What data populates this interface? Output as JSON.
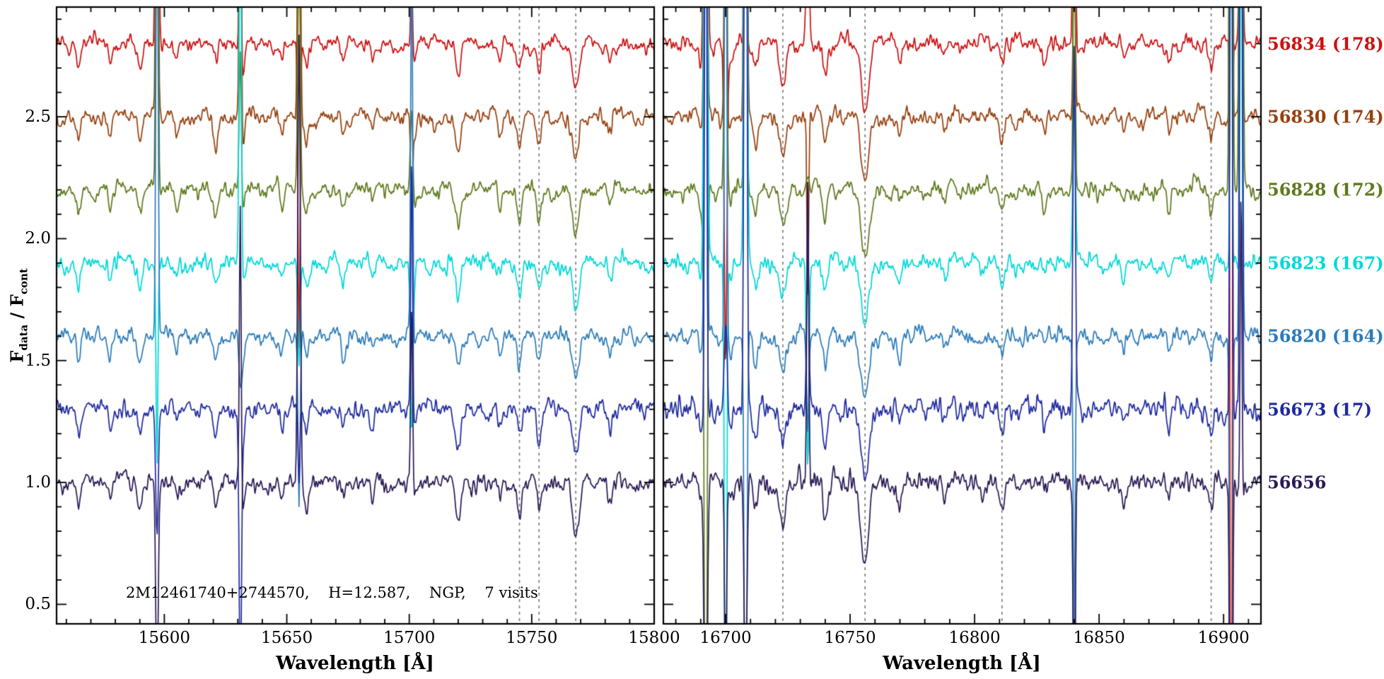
{
  "figure": {
    "annotation": "2M12461740+2744570,    H=12.587,    NGP,    7 visits",
    "xlabel": "Wavelength [Å]",
    "ylabel": {
      "f1": "F",
      "sub1": "data",
      "sep": " / ",
      "f2": "F",
      "sub2": "cont"
    },
    "background": "#ffffff",
    "axis_color": "#000000",
    "dashed_line_color": "#777777"
  },
  "chart_data": {
    "type": "line",
    "title": "",
    "xlabel": "Wavelength [Å]",
    "ylabel": "F_data / F_cont",
    "ylim": [
      0.42,
      2.95
    ],
    "yticks": [
      0.5,
      1.0,
      1.5,
      2.0,
      2.5
    ],
    "grid": false,
    "legend_position": "right",
    "annotation": "2M12461740+2744570,    H=12.587,    NGP,    7 visits",
    "noise_sigma": 0.022,
    "panels": [
      {
        "name": "left",
        "xlim": [
          15556,
          15800
        ],
        "xticks": [
          15600,
          15650,
          15700,
          15750,
          15800
        ],
        "dashed_lines": [
          15745,
          15753,
          15768
        ],
        "absorption_lines": [
          [
            15565,
            0.1,
            1.2
          ],
          [
            15578,
            0.08,
            1.0
          ],
          [
            15590,
            0.1,
            1.2
          ],
          [
            15605,
            0.07,
            1.0
          ],
          [
            15621,
            0.1,
            1.3
          ],
          [
            15632,
            0.12,
            1.0
          ],
          [
            15648,
            0.07,
            1.0
          ],
          [
            15658,
            0.09,
            1.2
          ],
          [
            15673,
            0.08,
            1.1
          ],
          [
            15685,
            0.06,
            1.0
          ],
          [
            15702,
            0.08,
            1.0
          ],
          [
            15720,
            0.14,
            1.6
          ],
          [
            15737,
            0.08,
            1.0
          ],
          [
            15745,
            0.12,
            1.2
          ],
          [
            15753,
            0.13,
            1.2
          ],
          [
            15768,
            0.21,
            1.8
          ],
          [
            15782,
            0.07,
            1.0
          ]
        ],
        "sky_spikes": [
          [
            15597,
            2.4
          ],
          [
            15631,
            2.0
          ],
          [
            15655,
            2.2
          ],
          [
            15701,
            1.5
          ]
        ]
      },
      {
        "name": "right",
        "xlim": [
          16675,
          16915
        ],
        "xticks": [
          16700,
          16750,
          16800,
          16850,
          16900
        ],
        "dashed_lines": [
          16723,
          16756,
          16811,
          16895
        ],
        "absorption_lines": [
          [
            16690,
            0.08,
            1.0
          ],
          [
            16702,
            0.08,
            1.0
          ],
          [
            16712,
            0.1,
            1.2
          ],
          [
            16723,
            0.16,
            1.8
          ],
          [
            16740,
            0.12,
            1.3
          ],
          [
            16756,
            0.28,
            2.2
          ],
          [
            16770,
            0.08,
            1.0
          ],
          [
            16788,
            0.06,
            1.0
          ],
          [
            16811,
            0.1,
            1.2
          ],
          [
            16828,
            0.07,
            1.0
          ],
          [
            16840,
            0.08,
            1.0
          ],
          [
            16860,
            0.06,
            1.0
          ],
          [
            16878,
            0.07,
            1.0
          ],
          [
            16895,
            0.1,
            1.2
          ]
        ],
        "sky_spikes": [
          [
            16692,
            9
          ],
          [
            16700,
            5
          ],
          [
            16708,
            8
          ],
          [
            16733,
            1.6
          ],
          [
            16840,
            2.8
          ],
          [
            16903,
            9
          ],
          [
            16907,
            7
          ]
        ]
      }
    ],
    "series": [
      {
        "label": "56834 (178)",
        "color": "#cc1111",
        "offset": 2.8,
        "seed": 11,
        "noise_scale": [
          1.0,
          1.1
        ]
      },
      {
        "label": "56830 (174)",
        "color": "#97400e",
        "offset": 2.5,
        "seed": 22,
        "noise_scale": [
          1.0,
          1.05
        ]
      },
      {
        "label": "56828 (172)",
        "color": "#5e7a1d",
        "offset": 2.2,
        "seed": 33,
        "noise_scale": [
          1.0,
          1.1
        ]
      },
      {
        "label": "56823 (167)",
        "color": "#00d8d8",
        "offset": 1.9,
        "seed": 44,
        "noise_scale": [
          1.05,
          1.15
        ]
      },
      {
        "label": "56820 (164)",
        "color": "#2b7bba",
        "offset": 1.6,
        "seed": 55,
        "noise_scale": [
          1.0,
          1.1
        ]
      },
      {
        "label": "56673 (17)",
        "color": "#1f2aa0",
        "offset": 1.3,
        "seed": 66,
        "noise_scale": [
          1.1,
          1.55
        ]
      },
      {
        "label": "56656",
        "color": "#2b1a55",
        "offset": 1.0,
        "seed": 77,
        "noise_scale": [
          1.1,
          1.45
        ]
      }
    ]
  }
}
